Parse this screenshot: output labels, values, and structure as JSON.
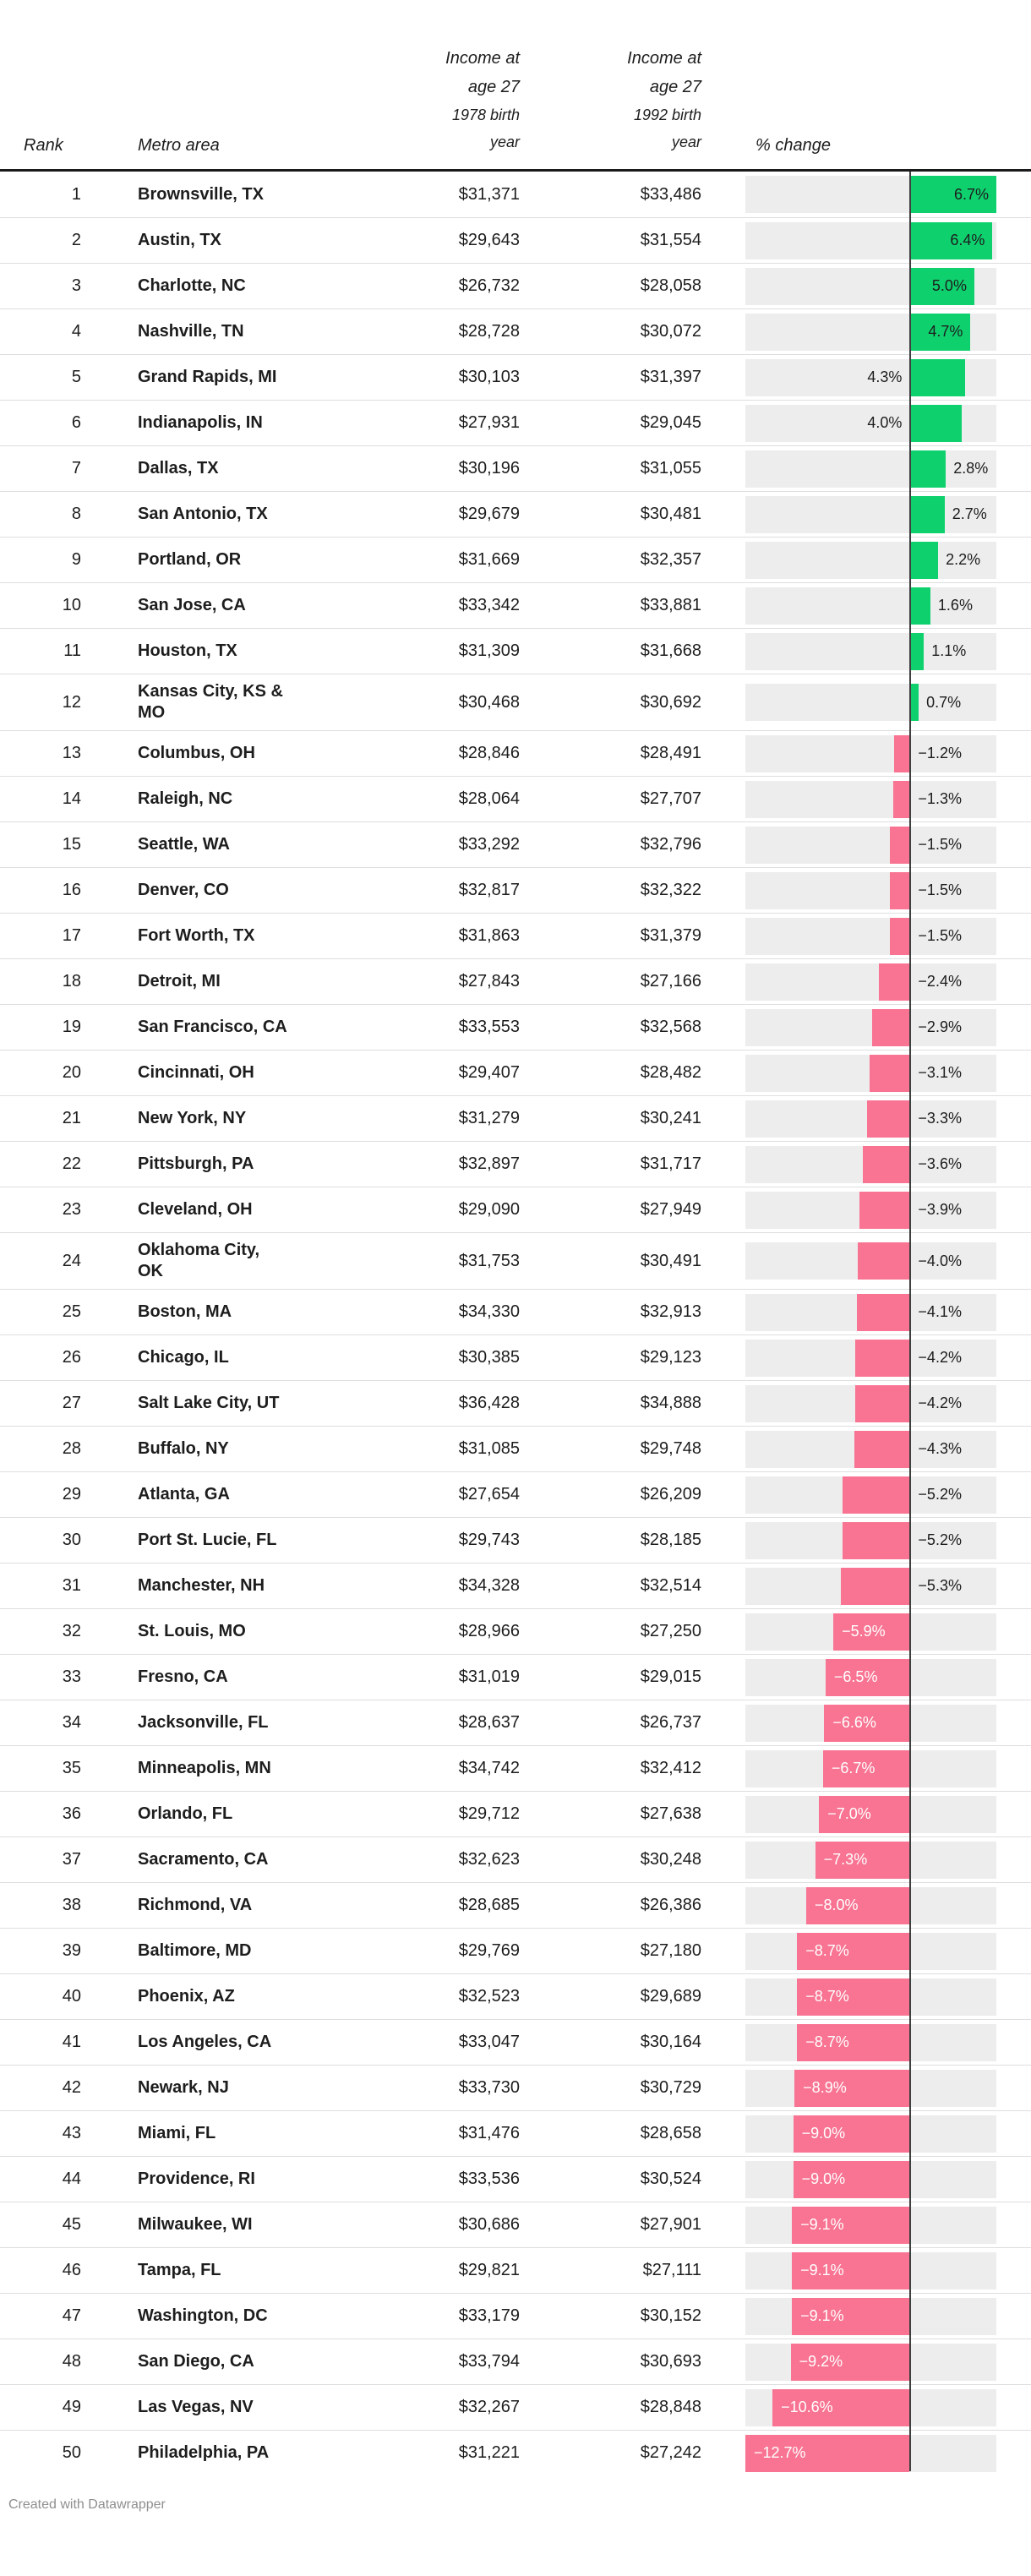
{
  "header": {
    "rank": "Rank",
    "metro": "Metro area",
    "col1978": [
      "Income at",
      "age 27",
      "1978 birth",
      "year"
    ],
    "col1992": [
      "Income at",
      "age 27",
      "1992 birth",
      "year"
    ],
    "pct": "% change"
  },
  "footer": {
    "text": "Created with Datawrapper"
  },
  "colors": {
    "positive": "#0ed16e",
    "negative": "#f87492",
    "track": "#ededed",
    "zero_line": "#3f3f3f",
    "label_dark": "#1d1d1d",
    "label_light": "#ffffff"
  },
  "rows": [
    {
      "rank": 1,
      "metro": "Brownsville, TX",
      "income_1978": "$31,371",
      "income_1992": "$33,486",
      "change": 6.7,
      "change_label": "6.7%"
    },
    {
      "rank": 2,
      "metro": "Austin, TX",
      "income_1978": "$29,643",
      "income_1992": "$31,554",
      "change": 6.4,
      "change_label": "6.4%"
    },
    {
      "rank": 3,
      "metro": "Charlotte, NC",
      "income_1978": "$26,732",
      "income_1992": "$28,058",
      "change": 5.0,
      "change_label": "5.0%"
    },
    {
      "rank": 4,
      "metro": "Nashville, TN",
      "income_1978": "$28,728",
      "income_1992": "$30,072",
      "change": 4.7,
      "change_label": "4.7%"
    },
    {
      "rank": 5,
      "metro": "Grand Rapids, MI",
      "income_1978": "$30,103",
      "income_1992": "$31,397",
      "change": 4.3,
      "change_label": "4.3%"
    },
    {
      "rank": 6,
      "metro": "Indianapolis, IN",
      "income_1978": "$27,931",
      "income_1992": "$29,045",
      "change": 4.0,
      "change_label": "4.0%"
    },
    {
      "rank": 7,
      "metro": "Dallas, TX",
      "income_1978": "$30,196",
      "income_1992": "$31,055",
      "change": 2.8,
      "change_label": "2.8%"
    },
    {
      "rank": 8,
      "metro": "San Antonio, TX",
      "income_1978": "$29,679",
      "income_1992": "$30,481",
      "change": 2.7,
      "change_label": "2.7%"
    },
    {
      "rank": 9,
      "metro": "Portland, OR",
      "income_1978": "$31,669",
      "income_1992": "$32,357",
      "change": 2.2,
      "change_label": "2.2%"
    },
    {
      "rank": 10,
      "metro": "San Jose, CA",
      "income_1978": "$33,342",
      "income_1992": "$33,881",
      "change": 1.6,
      "change_label": "1.6%"
    },
    {
      "rank": 11,
      "metro": "Houston, TX",
      "income_1978": "$31,309",
      "income_1992": "$31,668",
      "change": 1.1,
      "change_label": "1.1%"
    },
    {
      "rank": 12,
      "metro": "Kansas City, KS &\nMO",
      "income_1978": "$30,468",
      "income_1992": "$30,692",
      "change": 0.7,
      "change_label": "0.7%"
    },
    {
      "rank": 13,
      "metro": "Columbus, OH",
      "income_1978": "$28,846",
      "income_1992": "$28,491",
      "change": -1.2,
      "change_label": "−1.2%"
    },
    {
      "rank": 14,
      "metro": "Raleigh, NC",
      "income_1978": "$28,064",
      "income_1992": "$27,707",
      "change": -1.3,
      "change_label": "−1.3%"
    },
    {
      "rank": 15,
      "metro": "Seattle, WA",
      "income_1978": "$33,292",
      "income_1992": "$32,796",
      "change": -1.5,
      "change_label": "−1.5%"
    },
    {
      "rank": 16,
      "metro": "Denver, CO",
      "income_1978": "$32,817",
      "income_1992": "$32,322",
      "change": -1.5,
      "change_label": "−1.5%"
    },
    {
      "rank": 17,
      "metro": "Fort Worth, TX",
      "income_1978": "$31,863",
      "income_1992": "$31,379",
      "change": -1.5,
      "change_label": "−1.5%"
    },
    {
      "rank": 18,
      "metro": "Detroit, MI",
      "income_1978": "$27,843",
      "income_1992": "$27,166",
      "change": -2.4,
      "change_label": "−2.4%"
    },
    {
      "rank": 19,
      "metro": "San Francisco, CA",
      "income_1978": "$33,553",
      "income_1992": "$32,568",
      "change": -2.9,
      "change_label": "−2.9%"
    },
    {
      "rank": 20,
      "metro": "Cincinnati, OH",
      "income_1978": "$29,407",
      "income_1992": "$28,482",
      "change": -3.1,
      "change_label": "−3.1%"
    },
    {
      "rank": 21,
      "metro": "New York, NY",
      "income_1978": "$31,279",
      "income_1992": "$30,241",
      "change": -3.3,
      "change_label": "−3.3%"
    },
    {
      "rank": 22,
      "metro": "Pittsburgh, PA",
      "income_1978": "$32,897",
      "income_1992": "$31,717",
      "change": -3.6,
      "change_label": "−3.6%"
    },
    {
      "rank": 23,
      "metro": "Cleveland, OH",
      "income_1978": "$29,090",
      "income_1992": "$27,949",
      "change": -3.9,
      "change_label": "−3.9%"
    },
    {
      "rank": 24,
      "metro": "Oklahoma City,\nOK",
      "income_1978": "$31,753",
      "income_1992": "$30,491",
      "change": -4.0,
      "change_label": "−4.0%"
    },
    {
      "rank": 25,
      "metro": "Boston, MA",
      "income_1978": "$34,330",
      "income_1992": "$32,913",
      "change": -4.1,
      "change_label": "−4.1%"
    },
    {
      "rank": 26,
      "metro": "Chicago, IL",
      "income_1978": "$30,385",
      "income_1992": "$29,123",
      "change": -4.2,
      "change_label": "−4.2%"
    },
    {
      "rank": 27,
      "metro": "Salt Lake City, UT",
      "income_1978": "$36,428",
      "income_1992": "$34,888",
      "change": -4.2,
      "change_label": "−4.2%"
    },
    {
      "rank": 28,
      "metro": "Buffalo, NY",
      "income_1978": "$31,085",
      "income_1992": "$29,748",
      "change": -4.3,
      "change_label": "−4.3%"
    },
    {
      "rank": 29,
      "metro": "Atlanta, GA",
      "income_1978": "$27,654",
      "income_1992": "$26,209",
      "change": -5.2,
      "change_label": "−5.2%"
    },
    {
      "rank": 30,
      "metro": "Port St. Lucie, FL",
      "income_1978": "$29,743",
      "income_1992": "$28,185",
      "change": -5.2,
      "change_label": "−5.2%"
    },
    {
      "rank": 31,
      "metro": "Manchester, NH",
      "income_1978": "$34,328",
      "income_1992": "$32,514",
      "change": -5.3,
      "change_label": "−5.3%"
    },
    {
      "rank": 32,
      "metro": "St. Louis, MO",
      "income_1978": "$28,966",
      "income_1992": "$27,250",
      "change": -5.9,
      "change_label": "−5.9%"
    },
    {
      "rank": 33,
      "metro": "Fresno, CA",
      "income_1978": "$31,019",
      "income_1992": "$29,015",
      "change": -6.5,
      "change_label": "−6.5%"
    },
    {
      "rank": 34,
      "metro": "Jacksonville, FL",
      "income_1978": "$28,637",
      "income_1992": "$26,737",
      "change": -6.6,
      "change_label": "−6.6%"
    },
    {
      "rank": 35,
      "metro": "Minneapolis, MN",
      "income_1978": "$34,742",
      "income_1992": "$32,412",
      "change": -6.7,
      "change_label": "−6.7%"
    },
    {
      "rank": 36,
      "metro": "Orlando, FL",
      "income_1978": "$29,712",
      "income_1992": "$27,638",
      "change": -7.0,
      "change_label": "−7.0%"
    },
    {
      "rank": 37,
      "metro": "Sacramento, CA",
      "income_1978": "$32,623",
      "income_1992": "$30,248",
      "change": -7.3,
      "change_label": "−7.3%"
    },
    {
      "rank": 38,
      "metro": "Richmond, VA",
      "income_1978": "$28,685",
      "income_1992": "$26,386",
      "change": -8.0,
      "change_label": "−8.0%"
    },
    {
      "rank": 39,
      "metro": "Baltimore, MD",
      "income_1978": "$29,769",
      "income_1992": "$27,180",
      "change": -8.7,
      "change_label": "−8.7%"
    },
    {
      "rank": 40,
      "metro": "Phoenix, AZ",
      "income_1978": "$32,523",
      "income_1992": "$29,689",
      "change": -8.7,
      "change_label": "−8.7%"
    },
    {
      "rank": 41,
      "metro": "Los Angeles, CA",
      "income_1978": "$33,047",
      "income_1992": "$30,164",
      "change": -8.7,
      "change_label": "−8.7%"
    },
    {
      "rank": 42,
      "metro": "Newark, NJ",
      "income_1978": "$33,730",
      "income_1992": "$30,729",
      "change": -8.9,
      "change_label": "−8.9%"
    },
    {
      "rank": 43,
      "metro": "Miami, FL",
      "income_1978": "$31,476",
      "income_1992": "$28,658",
      "change": -9.0,
      "change_label": "−9.0%"
    },
    {
      "rank": 44,
      "metro": "Providence, RI",
      "income_1978": "$33,536",
      "income_1992": "$30,524",
      "change": -9.0,
      "change_label": "−9.0%"
    },
    {
      "rank": 45,
      "metro": "Milwaukee, WI",
      "income_1978": "$30,686",
      "income_1992": "$27,901",
      "change": -9.1,
      "change_label": "−9.1%"
    },
    {
      "rank": 46,
      "metro": "Tampa, FL",
      "income_1978": "$29,821",
      "income_1992": "$27,111",
      "change": -9.1,
      "change_label": "−9.1%"
    },
    {
      "rank": 47,
      "metro": "Washington, DC",
      "income_1978": "$33,179",
      "income_1992": "$30,152",
      "change": -9.1,
      "change_label": "−9.1%"
    },
    {
      "rank": 48,
      "metro": "San Diego, CA",
      "income_1978": "$33,794",
      "income_1992": "$30,693",
      "change": -9.2,
      "change_label": "−9.2%"
    },
    {
      "rank": 49,
      "metro": "Las Vegas, NV",
      "income_1978": "$32,267",
      "income_1992": "$28,848",
      "change": -10.6,
      "change_label": "−10.6%"
    },
    {
      "rank": 50,
      "metro": "Philadelphia, PA",
      "income_1978": "$31,221",
      "income_1992": "$27,242",
      "change": -12.7,
      "change_label": "−12.7%"
    }
  ],
  "chart_data": {
    "type": "bar",
    "orientation": "horizontal",
    "title": "Income at age 27 by metro area, 1978 vs 1992 birth year",
    "categories": [
      "Brownsville, TX",
      "Austin, TX",
      "Charlotte, NC",
      "Nashville, TN",
      "Grand Rapids, MI",
      "Indianapolis, IN",
      "Dallas, TX",
      "San Antonio, TX",
      "Portland, OR",
      "San Jose, CA",
      "Houston, TX",
      "Kansas City, KS & MO",
      "Columbus, OH",
      "Raleigh, NC",
      "Seattle, WA",
      "Denver, CO",
      "Fort Worth, TX",
      "Detroit, MI",
      "San Francisco, CA",
      "Cincinnati, OH",
      "New York, NY",
      "Pittsburgh, PA",
      "Cleveland, OH",
      "Oklahoma City, OK",
      "Boston, MA",
      "Chicago, IL",
      "Salt Lake City, UT",
      "Buffalo, NY",
      "Atlanta, GA",
      "Port St. Lucie, FL",
      "Manchester, NH",
      "St. Louis, MO",
      "Fresno, CA",
      "Jacksonville, FL",
      "Minneapolis, MN",
      "Orlando, FL",
      "Sacramento, CA",
      "Richmond, VA",
      "Baltimore, MD",
      "Phoenix, AZ",
      "Los Angeles, CA",
      "Newark, NJ",
      "Miami, FL",
      "Providence, RI",
      "Milwaukee, WI",
      "Tampa, FL",
      "Washington, DC",
      "San Diego, CA",
      "Las Vegas, NV",
      "Philadelphia, PA"
    ],
    "series": [
      {
        "name": "Income at age 27, 1978 birth year",
        "values": [
          31371,
          29643,
          26732,
          28728,
          30103,
          27931,
          30196,
          29679,
          31669,
          33342,
          31309,
          30468,
          28846,
          28064,
          33292,
          32817,
          31863,
          27843,
          33553,
          29407,
          31279,
          32897,
          29090,
          31753,
          34330,
          30385,
          36428,
          31085,
          27654,
          29743,
          34328,
          28966,
          31019,
          28637,
          34742,
          29712,
          32623,
          28685,
          29769,
          32523,
          33047,
          33730,
          31476,
          33536,
          30686,
          29821,
          33179,
          33794,
          32267,
          31221
        ]
      },
      {
        "name": "Income at age 27, 1992 birth year",
        "values": [
          33486,
          31554,
          28058,
          30072,
          31397,
          29045,
          31055,
          30481,
          32357,
          33881,
          31668,
          30692,
          28491,
          27707,
          32796,
          32322,
          31379,
          27166,
          32568,
          28482,
          30241,
          31717,
          27949,
          30491,
          32913,
          29123,
          34888,
          29748,
          26209,
          28185,
          32514,
          27250,
          29015,
          26737,
          32412,
          27638,
          30248,
          26386,
          27180,
          29689,
          30164,
          30729,
          28658,
          30524,
          27901,
          27111,
          30152,
          30693,
          28848,
          27242
        ]
      },
      {
        "name": "% change",
        "values": [
          6.7,
          6.4,
          5.0,
          4.7,
          4.3,
          4.0,
          2.8,
          2.7,
          2.2,
          1.6,
          1.1,
          0.7,
          -1.2,
          -1.3,
          -1.5,
          -1.5,
          -1.5,
          -2.4,
          -2.9,
          -3.1,
          -3.3,
          -3.6,
          -3.9,
          -4.0,
          -4.1,
          -4.2,
          -4.2,
          -4.3,
          -5.2,
          -5.2,
          -5.3,
          -5.9,
          -6.5,
          -6.6,
          -6.7,
          -7.0,
          -7.3,
          -8.0,
          -8.7,
          -8.7,
          -8.7,
          -8.9,
          -9.0,
          -9.0,
          -9.1,
          -9.1,
          -9.1,
          -9.2,
          -10.6,
          -12.7
        ]
      }
    ],
    "xlim": [
      -12.7,
      6.7
    ],
    "grid": false,
    "legend_position": "none"
  }
}
